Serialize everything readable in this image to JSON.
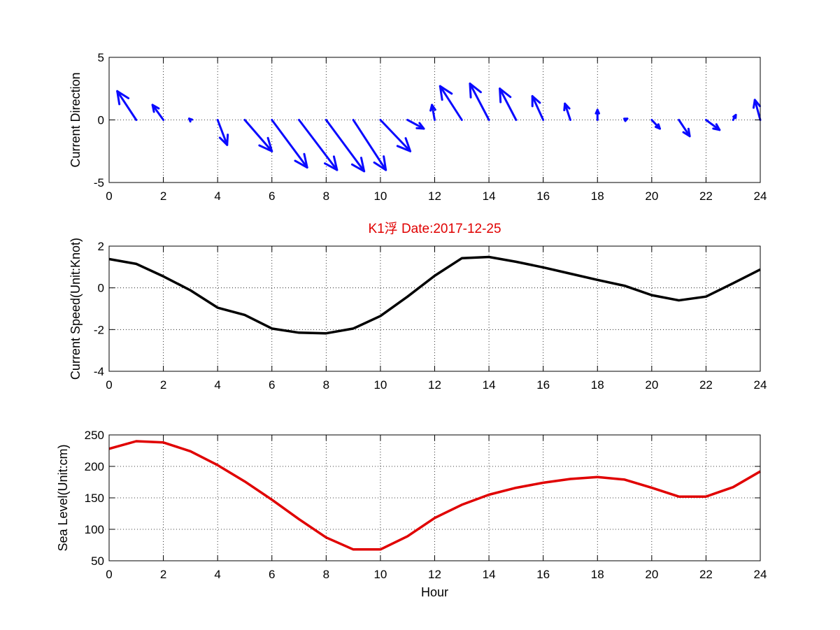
{
  "chart_data": [
    {
      "type": "quiver",
      "ylabel": "Current Direction",
      "xlim": [
        0,
        24
      ],
      "ylim": [
        -5,
        5
      ],
      "xticks": [
        0,
        2,
        4,
        6,
        8,
        10,
        12,
        14,
        16,
        18,
        20,
        22,
        24
      ],
      "yticks": [
        -5,
        0,
        5
      ],
      "grid": true,
      "color": "#0a0aff",
      "arrows": [
        {
          "hour": 1,
          "u": -0.7,
          "v": 2.3
        },
        {
          "hour": 2,
          "u": -0.4,
          "v": 1.2
        },
        {
          "hour": 3,
          "u": -0.05,
          "v": 0.1
        },
        {
          "hour": 4,
          "u": 0.35,
          "v": -2.0
        },
        {
          "hour": 5,
          "u": 1.0,
          "v": -2.5
        },
        {
          "hour": 6,
          "u": 1.3,
          "v": -3.8
        },
        {
          "hour": 7,
          "u": 1.4,
          "v": -4.0
        },
        {
          "hour": 8,
          "u": 1.4,
          "v": -4.1
        },
        {
          "hour": 9,
          "u": 1.2,
          "v": -4.0
        },
        {
          "hour": 10,
          "u": 1.1,
          "v": -2.5
        },
        {
          "hour": 11,
          "u": 0.6,
          "v": -0.7
        },
        {
          "hour": 12,
          "u": -0.1,
          "v": 1.2
        },
        {
          "hour": 13,
          "u": -0.8,
          "v": 2.7
        },
        {
          "hour": 14,
          "u": -0.7,
          "v": 2.9
        },
        {
          "hour": 15,
          "u": -0.6,
          "v": 2.5
        },
        {
          "hour": 16,
          "u": -0.4,
          "v": 1.9
        },
        {
          "hour": 17,
          "u": -0.2,
          "v": 1.3
        },
        {
          "hour": 18,
          "u": 0.0,
          "v": 0.8
        },
        {
          "hour": 19,
          "u": 0.1,
          "v": 0.1
        },
        {
          "hour": 20,
          "u": 0.3,
          "v": -0.7
        },
        {
          "hour": 21,
          "u": 0.4,
          "v": -1.3
        },
        {
          "hour": 22,
          "u": 0.5,
          "v": -0.8
        },
        {
          "hour": 23,
          "u": 0.1,
          "v": 0.4
        },
        {
          "hour": 24,
          "u": -0.2,
          "v": 1.6
        }
      ]
    },
    {
      "type": "line",
      "title": "K1浮    Date:2017-12-25",
      "ylabel": "Current Speed(Unit:Knot)",
      "xlim": [
        0,
        24
      ],
      "ylim": [
        -4,
        2
      ],
      "xticks": [
        0,
        2,
        4,
        6,
        8,
        10,
        12,
        14,
        16,
        18,
        20,
        22,
        24
      ],
      "yticks": [
        -4,
        -2,
        0,
        2
      ],
      "grid": true,
      "color": "#000000",
      "x": [
        0,
        1,
        2,
        3,
        4,
        5,
        6,
        7,
        8,
        9,
        10,
        11,
        12,
        13,
        14,
        15,
        16,
        17,
        18,
        19,
        20,
        21,
        22,
        23,
        24
      ],
      "y": [
        1.38,
        1.15,
        0.55,
        -0.12,
        -0.95,
        -1.3,
        -1.95,
        -2.15,
        -2.18,
        -1.95,
        -1.35,
        -0.42,
        0.58,
        1.42,
        1.48,
        1.25,
        0.98,
        0.68,
        0.38,
        0.1,
        -0.35,
        -0.6,
        -0.42,
        0.22,
        0.88
      ]
    },
    {
      "type": "line",
      "xlabel": "Hour",
      "ylabel": "Sea Level(Unit:cm)",
      "xlim": [
        0,
        24
      ],
      "ylim": [
        50,
        250
      ],
      "xticks": [
        0,
        2,
        4,
        6,
        8,
        10,
        12,
        14,
        16,
        18,
        20,
        22,
        24
      ],
      "yticks": [
        50,
        100,
        150,
        200,
        250
      ],
      "grid": true,
      "color": "#e00000",
      "x": [
        0,
        1,
        2,
        3,
        4,
        5,
        6,
        7,
        8,
        9,
        10,
        11,
        12,
        13,
        14,
        15,
        16,
        17,
        18,
        19,
        20,
        21,
        22,
        23,
        24
      ],
      "y": [
        228,
        240,
        238,
        224,
        202,
        176,
        147,
        116,
        87,
        68,
        68,
        89,
        118,
        139,
        155,
        166,
        174,
        180,
        183,
        179,
        166,
        152,
        152,
        167,
        192
      ]
    }
  ]
}
